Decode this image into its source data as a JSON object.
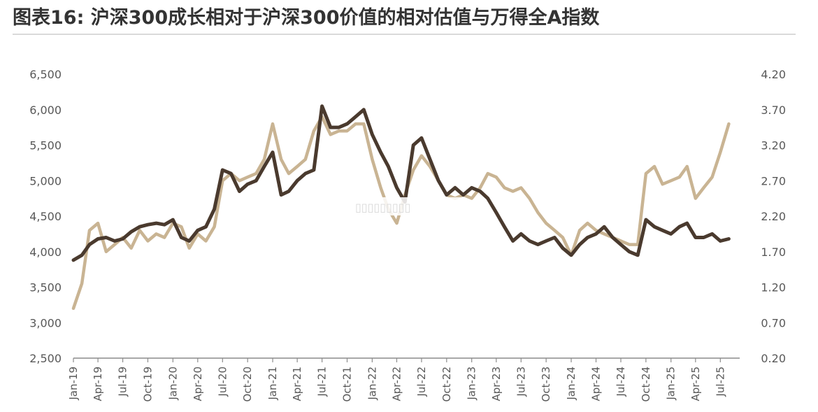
{
  "title": "图表16: 沪深300成长相对于沪深300价值的相对估值与万得全A指数",
  "chart_data": {
    "type": "line",
    "title": "图表16: 沪深300成长相对于沪深300价值的相对估值与万得全A指数",
    "xlabel": "",
    "ylabel": "",
    "ylim_left": [
      2500,
      6500
    ],
    "ylim_right": [
      0.2,
      4.2
    ],
    "y_ticks_left": [
      "6,500",
      "6,000",
      "5,500",
      "5,000",
      "4,500",
      "4,000",
      "3,500",
      "3,000",
      "2,500"
    ],
    "y_ticks_right": [
      "4.20",
      "3.70",
      "3.20",
      "2.70",
      "2.20",
      "1.70",
      "1.20",
      "0.70",
      "0.20"
    ],
    "x_ticks": [
      "Jan-19",
      "Apr-19",
      "Jul-19",
      "Oct-19",
      "Jan-20",
      "Apr-20",
      "Jul-20",
      "Oct-20",
      "Jan-21",
      "Apr-21",
      "Jul-21",
      "Oct-21",
      "Jan-22",
      "Apr-22",
      "Jul-22",
      "Oct-22",
      "Jan-23",
      "Apr-23",
      "Jul-23",
      "Oct-23",
      "Jan-24",
      "Apr-24",
      "Jul-24",
      "Oct-24",
      "Jan-25",
      "Apr-25",
      "Jul-25"
    ],
    "grid": false,
    "legend": "none",
    "series": [
      {
        "axis": "left",
        "color": "#4a3a2e",
        "points": [
          [
            "2019-01",
            3880
          ],
          [
            "2019-02",
            3950
          ],
          [
            "2019-03",
            4100
          ],
          [
            "2019-04",
            4180
          ],
          [
            "2019-05",
            4200
          ],
          [
            "2019-06",
            4150
          ],
          [
            "2019-07",
            4180
          ],
          [
            "2019-08",
            4280
          ],
          [
            "2019-09",
            4350
          ],
          [
            "2019-10",
            4380
          ],
          [
            "2019-11",
            4400
          ],
          [
            "2019-12",
            4380
          ],
          [
            "2020-01",
            4450
          ],
          [
            "2020-02",
            4200
          ],
          [
            "2020-03",
            4150
          ],
          [
            "2020-04",
            4300
          ],
          [
            "2020-05",
            4350
          ],
          [
            "2020-06",
            4600
          ],
          [
            "2020-07",
            5150
          ],
          [
            "2020-08",
            5100
          ],
          [
            "2020-09",
            4850
          ],
          [
            "2020-10",
            4950
          ],
          [
            "2020-11",
            5000
          ],
          [
            "2020-12",
            5200
          ],
          [
            "2021-01",
            5400
          ],
          [
            "2021-02",
            4800
          ],
          [
            "2021-03",
            4850
          ],
          [
            "2021-04",
            5000
          ],
          [
            "2021-05",
            5100
          ],
          [
            "2021-06",
            5150
          ],
          [
            "2021-07",
            6050
          ],
          [
            "2021-08",
            5750
          ],
          [
            "2021-09",
            5750
          ],
          [
            "2021-10",
            5800
          ],
          [
            "2021-11",
            5900
          ],
          [
            "2021-12",
            6000
          ],
          [
            "2022-01",
            5650
          ],
          [
            "2022-02",
            5400
          ],
          [
            "2022-03",
            5200
          ],
          [
            "2022-04",
            4900
          ],
          [
            "2022-05",
            4700
          ],
          [
            "2022-06",
            5500
          ],
          [
            "2022-07",
            5600
          ],
          [
            "2022-08",
            5300
          ],
          [
            "2022-09",
            5000
          ],
          [
            "2022-10",
            4800
          ],
          [
            "2022-11",
            4900
          ],
          [
            "2022-12",
            4800
          ],
          [
            "2023-01",
            4900
          ],
          [
            "2023-02",
            4850
          ],
          [
            "2023-03",
            4750
          ],
          [
            "2023-04",
            4550
          ],
          [
            "2023-05",
            4350
          ],
          [
            "2023-06",
            4150
          ],
          [
            "2023-07",
            4250
          ],
          [
            "2023-08",
            4150
          ],
          [
            "2023-09",
            4100
          ],
          [
            "2023-10",
            4150
          ],
          [
            "2023-11",
            4200
          ],
          [
            "2023-12",
            4050
          ],
          [
            "2024-01",
            3950
          ],
          [
            "2024-02",
            4100
          ],
          [
            "2024-03",
            4200
          ],
          [
            "2024-04",
            4250
          ],
          [
            "2024-05",
            4350
          ],
          [
            "2024-06",
            4200
          ],
          [
            "2024-07",
            4100
          ],
          [
            "2024-08",
            4000
          ],
          [
            "2024-09",
            3950
          ],
          [
            "2024-10",
            4450
          ],
          [
            "2024-11",
            4350
          ],
          [
            "2024-12",
            4300
          ],
          [
            "2025-01",
            4250
          ],
          [
            "2025-02",
            4350
          ],
          [
            "2025-03",
            4400
          ],
          [
            "2025-04",
            4200
          ],
          [
            "2025-05",
            4200
          ],
          [
            "2025-06",
            4250
          ],
          [
            "2025-07",
            4150
          ],
          [
            "2025-08",
            4180
          ]
        ]
      },
      {
        "axis": "right",
        "color": "#c9b493",
        "points": [
          [
            "2019-01",
            0.9
          ],
          [
            "2019-02",
            1.25
          ],
          [
            "2019-03",
            2.0
          ],
          [
            "2019-04",
            2.1
          ],
          [
            "2019-05",
            1.7
          ],
          [
            "2019-06",
            1.8
          ],
          [
            "2019-07",
            1.9
          ],
          [
            "2019-08",
            1.75
          ],
          [
            "2019-09",
            2.0
          ],
          [
            "2019-10",
            1.85
          ],
          [
            "2019-11",
            1.95
          ],
          [
            "2019-12",
            1.9
          ],
          [
            "2020-01",
            2.1
          ],
          [
            "2020-02",
            2.05
          ],
          [
            "2020-03",
            1.75
          ],
          [
            "2020-04",
            1.95
          ],
          [
            "2020-05",
            1.85
          ],
          [
            "2020-06",
            2.05
          ],
          [
            "2020-07",
            2.7
          ],
          [
            "2020-08",
            2.8
          ],
          [
            "2020-09",
            2.7
          ],
          [
            "2020-10",
            2.75
          ],
          [
            "2020-11",
            2.8
          ],
          [
            "2020-12",
            3.0
          ],
          [
            "2021-01",
            3.5
          ],
          [
            "2021-02",
            3.0
          ],
          [
            "2021-03",
            2.8
          ],
          [
            "2021-04",
            2.9
          ],
          [
            "2021-05",
            3.0
          ],
          [
            "2021-06",
            3.4
          ],
          [
            "2021-07",
            3.6
          ],
          [
            "2021-08",
            3.35
          ],
          [
            "2021-09",
            3.4
          ],
          [
            "2021-10",
            3.4
          ],
          [
            "2021-11",
            3.5
          ],
          [
            "2021-12",
            3.5
          ],
          [
            "2022-01",
            3.0
          ],
          [
            "2022-02",
            2.6
          ],
          [
            "2022-03",
            2.3
          ],
          [
            "2022-04",
            2.1
          ],
          [
            "2022-05",
            2.5
          ],
          [
            "2022-06",
            2.85
          ],
          [
            "2022-07",
            3.05
          ],
          [
            "2022-08",
            2.9
          ],
          [
            "2022-09",
            2.7
          ],
          [
            "2022-10",
            2.5
          ],
          [
            "2022-11",
            2.45
          ],
          [
            "2022-12",
            2.5
          ],
          [
            "2023-01",
            2.45
          ],
          [
            "2023-02",
            2.6
          ],
          [
            "2023-03",
            2.8
          ],
          [
            "2023-04",
            2.75
          ],
          [
            "2023-05",
            2.6
          ],
          [
            "2023-06",
            2.55
          ],
          [
            "2023-07",
            2.6
          ],
          [
            "2023-08",
            2.45
          ],
          [
            "2023-09",
            2.25
          ],
          [
            "2023-10",
            2.1
          ],
          [
            "2023-11",
            2.0
          ],
          [
            "2023-12",
            1.9
          ],
          [
            "2024-01",
            1.65
          ],
          [
            "2024-02",
            2.0
          ],
          [
            "2024-03",
            2.1
          ],
          [
            "2024-04",
            2.0
          ],
          [
            "2024-05",
            1.95
          ],
          [
            "2024-06",
            1.9
          ],
          [
            "2024-07",
            1.85
          ],
          [
            "2024-08",
            1.8
          ],
          [
            "2024-09",
            1.8
          ],
          [
            "2024-10",
            2.8
          ],
          [
            "2024-11",
            2.9
          ],
          [
            "2024-12",
            2.65
          ],
          [
            "2025-01",
            2.7
          ],
          [
            "2025-02",
            2.75
          ],
          [
            "2025-03",
            2.9
          ],
          [
            "2025-04",
            2.45
          ],
          [
            "2025-05",
            2.6
          ],
          [
            "2025-06",
            2.75
          ],
          [
            "2025-07",
            3.1
          ],
          [
            "2025-08",
            3.5
          ]
        ]
      }
    ]
  },
  "watermark_text": "▯▯▯▯▯▯▯▯▯"
}
